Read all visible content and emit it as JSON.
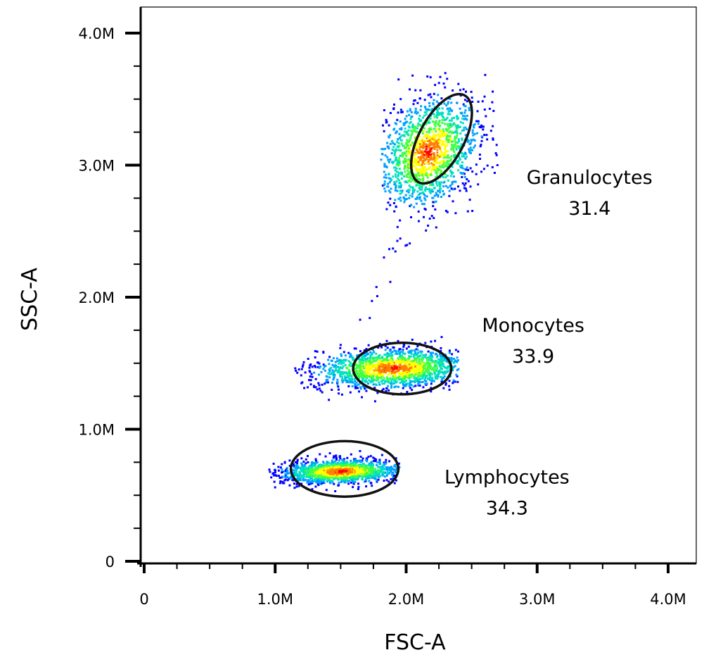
{
  "chart_data": {
    "type": "scatter",
    "subtype": "flow-cytometry density dot plot",
    "xlabel": "FSC-A",
    "ylabel": "SSC-A",
    "xlim": [
      0,
      4000000
    ],
    "ylim": [
      0,
      4000000
    ],
    "x_ticks": [
      {
        "value": 0,
        "label": "0"
      },
      {
        "value": 1000000,
        "label": "1.0M"
      },
      {
        "value": 2000000,
        "label": "2.0M"
      },
      {
        "value": 3000000,
        "label": "3.0M"
      },
      {
        "value": 4000000,
        "label": "4.0M"
      }
    ],
    "y_ticks": [
      {
        "value": 0,
        "label": "0"
      },
      {
        "value": 1000000,
        "label": "1.0M"
      },
      {
        "value": 2000000,
        "label": "2.0M"
      },
      {
        "value": 3000000,
        "label": "3.0M"
      },
      {
        "value": 4000000,
        "label": "4.0M"
      }
    ],
    "minor_ticks_per_major": 4,
    "grid": false,
    "density_colormap": [
      "#0000ff",
      "#00a0ff",
      "#00e0c0",
      "#40ff40",
      "#ffff00",
      "#ff8000",
      "#ff0000"
    ],
    "populations": [
      {
        "name": "Lymphocytes",
        "percent": "34.3",
        "center": [
          1500000,
          680000
        ],
        "spread": [
          230000,
          45000
        ],
        "x_range": [
          950000,
          1950000
        ],
        "y_range": [
          450000,
          850000
        ],
        "rotation_deg": 2,
        "peak": "#ff0000",
        "count": 1400,
        "gate": {
          "center": [
            1530000,
            700000
          ],
          "semi_axes": [
            820000,
            420000
          ],
          "rotation_deg": 0
        }
      },
      {
        "name": "Monocytes",
        "percent": "33.9",
        "center": [
          1900000,
          1460000
        ],
        "spread": [
          300000,
          75000
        ],
        "x_range": [
          1150000,
          2400000
        ],
        "y_range": [
          1150000,
          1700000
        ],
        "rotation_deg": 2,
        "peak": "#ff4000",
        "count": 1600,
        "gate": {
          "center": [
            1970000,
            1460000
          ],
          "semi_axes": [
            750000,
            390000
          ],
          "rotation_deg": 0
        }
      },
      {
        "name": "Granulocytes",
        "percent": "31.4",
        "center": [
          2170000,
          3100000
        ],
        "spread": [
          170000,
          230000
        ],
        "x_range": [
          1800000,
          2750000
        ],
        "y_range": [
          2400000,
          3700000
        ],
        "rotation_deg": -35,
        "peak": "#30f070",
        "count": 1500,
        "gate": {
          "center": [
            2270000,
            3200000
          ],
          "semi_axes": [
            750000,
            340000
          ],
          "rotation_deg": -62
        }
      }
    ],
    "annotations": [
      {
        "population": "Granulocytes",
        "name": "Granulocytes",
        "value": "31.4",
        "at": [
          3400000,
          2860000
        ]
      },
      {
        "population": "Monocytes",
        "name": "Monocytes",
        "value": "33.9",
        "at": [
          2970000,
          1740000
        ]
      },
      {
        "population": "Lymphocytes",
        "name": "Lymphocytes",
        "value": "34.3",
        "at": [
          2770000,
          590000
        ]
      }
    ]
  }
}
